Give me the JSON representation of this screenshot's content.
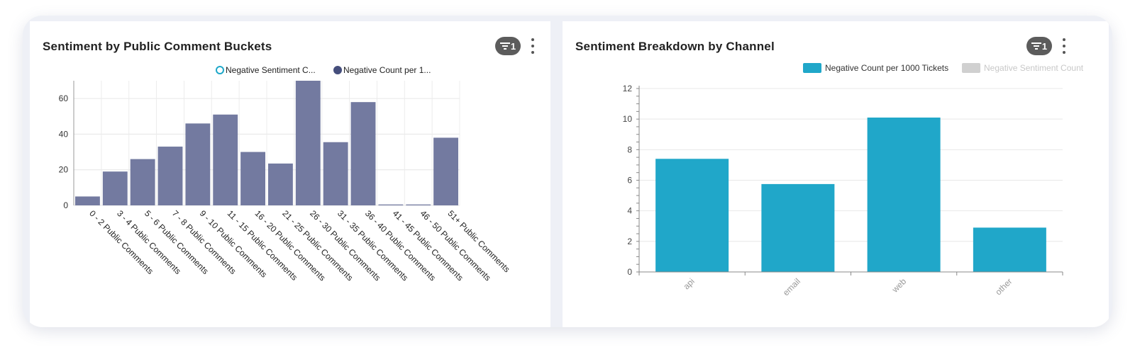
{
  "panels": [
    {
      "title": "Sentiment by Public Comment Buckets",
      "filter_count": "1",
      "legend": [
        {
          "label": "Negative Sentiment C...",
          "style": "hollow-circle",
          "color": "#1fa8c9"
        },
        {
          "label": "Negative Count per 1...",
          "style": "filled-circle",
          "color": "#454e7c"
        }
      ]
    },
    {
      "title": "Sentiment Breakdown by Channel",
      "filter_count": "1",
      "legend": [
        {
          "label": "Negative Count per 1000 Tickets",
          "style": "rect",
          "color": "#20a7c9"
        },
        {
          "label": "Negative Sentiment Count",
          "style": "rect-disabled",
          "color": "#d0d0d0"
        }
      ]
    }
  ],
  "chart_data": [
    {
      "type": "bar",
      "title": "Sentiment by Public Comment Buckets",
      "categories": [
        "0 - 2 Public Comments",
        "3 - 4 Public Comments",
        "5 - 6 Public Comments",
        "7 - 8 Public Comments",
        "9 - 10 Public Comments",
        "11 - 15 Public Comments",
        "16 - 20 Public Comments",
        "21 - 25 Public Comments",
        "26 - 30 Public Comments",
        "31 - 35 Public Comments",
        "36 - 40 Public Comments",
        "41 - 45 Public Comments",
        "46 - 50 Public Comments",
        "51+ Public Comments"
      ],
      "series": [
        {
          "name": "Negative Count per 1...",
          "color": "#737aa0",
          "values": [
            5,
            19,
            26,
            33,
            46,
            51,
            30,
            23.5,
            70,
            35.5,
            58,
            0.5,
            0.5,
            38
          ]
        }
      ],
      "ylim": [
        0,
        70
      ],
      "yticks": [
        0,
        20,
        40,
        60
      ],
      "grid": true,
      "legend_position": "top-right"
    },
    {
      "type": "bar",
      "title": "Sentiment Breakdown by Channel",
      "categories": [
        "api",
        "email",
        "web",
        "other"
      ],
      "series": [
        {
          "name": "Negative Count per 1000 Tickets",
          "color": "#20a7c9",
          "values": [
            7.4,
            5.75,
            10.1,
            2.9
          ]
        }
      ],
      "ylim": [
        0,
        12
      ],
      "yticks": [
        0,
        2,
        4,
        6,
        8,
        10,
        12
      ],
      "grid": true,
      "legend_position": "top-right"
    }
  ]
}
